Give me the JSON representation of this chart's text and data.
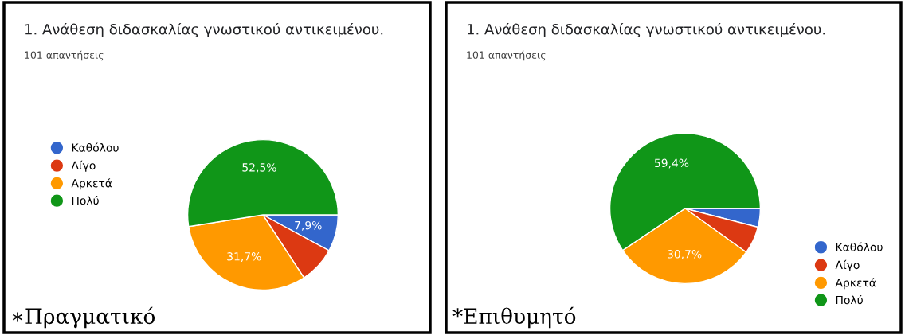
{
  "chart_data": [
    {
      "type": "pie",
      "title": "1. Ανάθεση διδασκαλίας γνωστικού αντικειμένου.",
      "subtitle": "101 απαντήσεις",
      "categories": [
        "Καθόλου",
        "Λίγο",
        "Αρκετά",
        "Πολύ"
      ],
      "values": [
        7.9,
        7.9,
        31.7,
        52.5
      ],
      "colors": [
        "#3366cc",
        "#dc3912",
        "#ff9900",
        "#109618"
      ],
      "value_labels": [
        "7,9%",
        null,
        "31,7%",
        "52,5%"
      ],
      "legend": "left",
      "annotations": [
        "∗Πραγματικό"
      ]
    },
    {
      "type": "pie",
      "title": "1. Ανάθεση διδασκαλίας γνωστικού αντικειμένου.",
      "subtitle": "101 απαντήσεις",
      "categories": [
        "Καθόλου",
        "Λίγο",
        "Αρκετά",
        "Πολύ"
      ],
      "values": [
        4.0,
        5.9,
        30.7,
        59.4
      ],
      "colors": [
        "#3366cc",
        "#dc3912",
        "#ff9900",
        "#109618"
      ],
      "value_labels": [
        null,
        null,
        "30,7%",
        "59,4%"
      ],
      "legend": "bottom right",
      "annotations": [
        "*Επιθυμητό"
      ]
    }
  ]
}
